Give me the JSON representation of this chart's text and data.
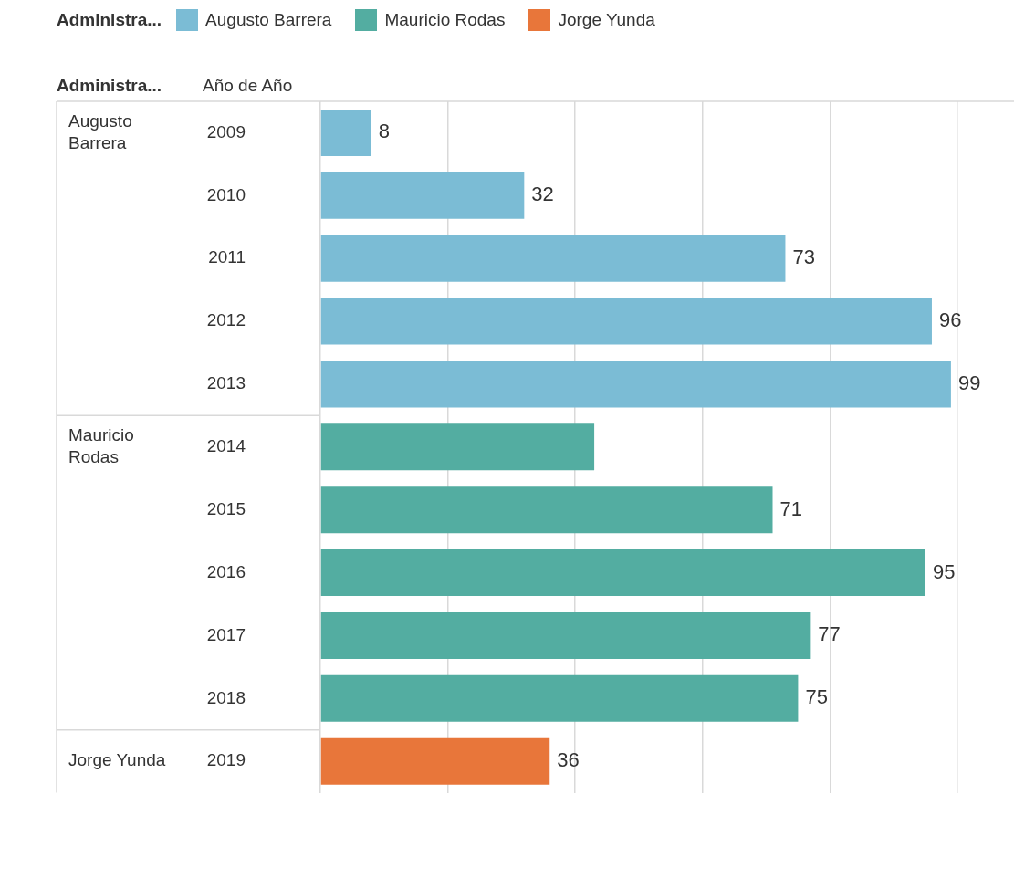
{
  "chart_data": {
    "type": "bar",
    "orientation": "horizontal",
    "legend_title": "Administra...",
    "ylabel": "Año de Año",
    "categories": [
      "2009",
      "2010",
      "2011",
      "2012",
      "2013",
      "2014",
      "2015",
      "2016",
      "2017",
      "2018",
      "2019"
    ],
    "series": [
      {
        "name": "Augusto Barrera",
        "color": "#7bbcd5",
        "values": [
          8,
          32,
          73,
          96,
          99,
          null,
          null,
          null,
          null,
          null,
          null
        ],
        "value_labels": [
          "8",
          "32",
          "73",
          "96",
          "99",
          null,
          null,
          null,
          null,
          null,
          null
        ]
      },
      {
        "name": "Mauricio Rodas",
        "color": "#53ada1",
        "values": [
          null,
          null,
          null,
          null,
          null,
          43,
          71,
          95,
          77,
          75,
          null
        ],
        "value_labels": [
          null,
          null,
          null,
          null,
          null,
          null,
          "71",
          "95",
          "77",
          "75",
          null
        ]
      },
      {
        "name": "Jorge Yunda",
        "color": "#e8763a",
        "values": [
          null,
          null,
          null,
          null,
          null,
          null,
          null,
          null,
          null,
          null,
          36
        ],
        "value_labels": [
          null,
          null,
          null,
          null,
          null,
          null,
          null,
          null,
          null,
          null,
          "36"
        ]
      }
    ],
    "xlim": [
      0,
      108.9
    ],
    "xticks": [
      {
        "value": 0,
        "label": null
      },
      {
        "value": 20,
        "label": null
      },
      {
        "value": 40,
        "label": null
      },
      {
        "value": 60,
        "label": null
      },
      {
        "value": 80,
        "label": null
      },
      {
        "value": 100,
        "label": null
      }
    ],
    "grid": "x",
    "legend": "top left",
    "tick_labels": "y"
  }
}
